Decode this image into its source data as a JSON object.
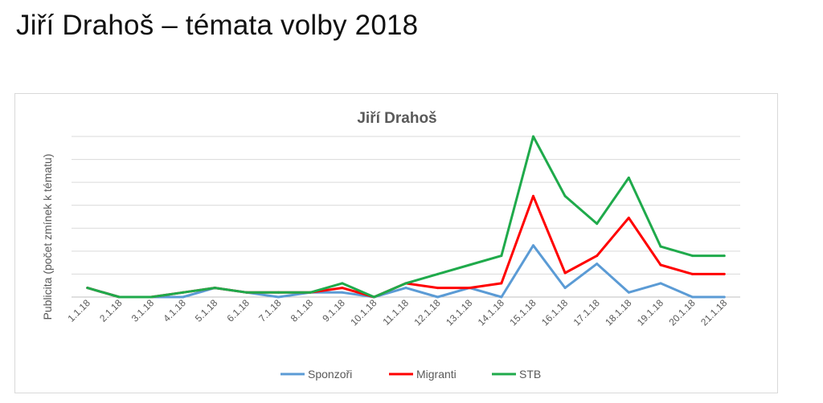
{
  "slide": {
    "title": "Jiří Drahoš – témata volby 2018"
  },
  "chart_data": {
    "type": "line",
    "title": "Jiří Drahoš",
    "xlabel": "",
    "ylabel": "Publicita (počet zmínek k tématu)",
    "ylim": [
      0,
      14
    ],
    "grid": true,
    "legend": "bottom",
    "categories": [
      "1.1.18",
      "2.1.18",
      "3.1.18",
      "4.1.18",
      "5.1.18",
      "6.1.18",
      "7.1.18",
      "8.1.18",
      "9.1.18",
      "10.1.18",
      "11.1.18",
      "12.1.18",
      "13.1.18",
      "14.1.18",
      "15.1.18",
      "16.1.18",
      "17.1.18",
      "18.1.18",
      "19.1.18",
      "20.1.18",
      "21.1.18"
    ],
    "series": [
      {
        "name": "Sponzoři",
        "color": "#5b9bd5",
        "values": [
          0.8,
          0,
          0,
          0,
          0.8,
          0.4,
          0,
          0.4,
          0.4,
          0,
          0.8,
          0,
          0.8,
          0,
          4.5,
          0.8,
          2.9,
          0.4,
          1.2,
          0,
          0
        ]
      },
      {
        "name": "Migranti",
        "color": "#ff0000",
        "values": [
          0.8,
          0,
          0,
          0.4,
          0.8,
          0.4,
          0.4,
          0.4,
          0.8,
          0,
          1.2,
          0.8,
          0.8,
          1.2,
          8.8,
          2.1,
          3.6,
          6.9,
          2.8,
          2.0,
          2.0
        ]
      },
      {
        "name": "STB",
        "color": "#1faa4b",
        "values": [
          0.8,
          0,
          0,
          0.4,
          0.8,
          0.4,
          0.4,
          0.4,
          1.2,
          0,
          1.2,
          2.0,
          2.8,
          3.6,
          14.0,
          8.8,
          6.4,
          10.4,
          4.4,
          3.6,
          3.6
        ]
      }
    ]
  }
}
